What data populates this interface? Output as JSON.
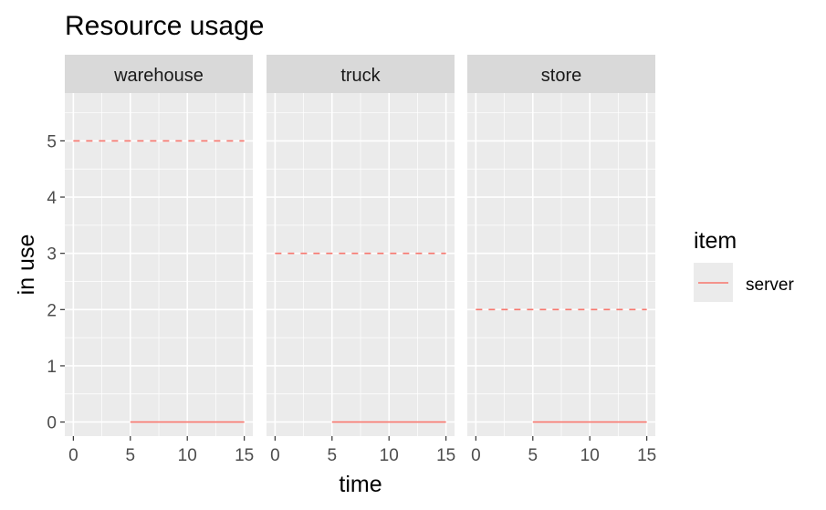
{
  "chart_data": {
    "type": "line",
    "title": "Resource usage",
    "xlabel": "time",
    "ylabel": "in use",
    "xlim": [
      -0.75,
      15.75
    ],
    "ylim": [
      -0.25,
      5.85
    ],
    "x_ticks": [
      0,
      5,
      10,
      15
    ],
    "y_ticks": [
      0,
      1,
      2,
      3,
      4,
      5
    ],
    "grid": true,
    "legend": {
      "title": "item",
      "position": "right",
      "entries": [
        {
          "label": "server",
          "color": "#F8766D"
        }
      ]
    },
    "panels": [
      {
        "name": "warehouse",
        "capacity": {
          "x": [
            0,
            15
          ],
          "y": [
            5,
            5
          ],
          "linetype": "dashed"
        },
        "series": [
          {
            "name": "server",
            "x": [
              5,
              15
            ],
            "y": [
              0,
              0
            ],
            "color": "#F8766D"
          }
        ]
      },
      {
        "name": "truck",
        "capacity": {
          "x": [
            0,
            15
          ],
          "y": [
            3,
            3
          ],
          "linetype": "dashed"
        },
        "series": [
          {
            "name": "server",
            "x": [
              5,
              15
            ],
            "y": [
              0,
              0
            ],
            "color": "#F8766D"
          }
        ]
      },
      {
        "name": "store",
        "capacity": {
          "x": [
            0,
            15
          ],
          "y": [
            2,
            2
          ],
          "linetype": "dashed"
        },
        "series": [
          {
            "name": "server",
            "x": [
              5,
              15
            ],
            "y": [
              0,
              0
            ],
            "color": "#F8766D"
          }
        ]
      }
    ]
  }
}
